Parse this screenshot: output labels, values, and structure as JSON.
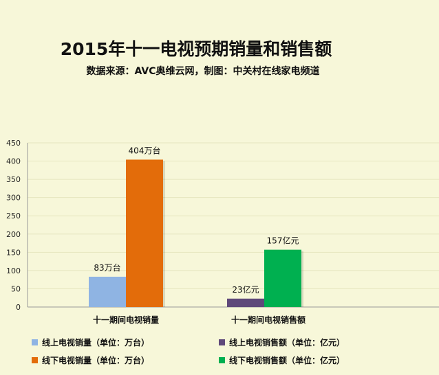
{
  "chart_data": {
    "type": "bar",
    "title": "2015年十一电视预期销量和销售额",
    "subtitle": "数据来源：AVC奥维云网，制图：中关村在线家电频道",
    "categories": [
      "十一期间电视销量",
      "十一期间电视销售额"
    ],
    "ylim": [
      0,
      450
    ],
    "yticks": [
      0,
      50,
      100,
      150,
      200,
      250,
      300,
      350,
      400,
      450
    ],
    "grid": true,
    "legend_position": "bottom",
    "series": [
      {
        "name": "线上电视销量（单位：万台）",
        "color": "#8fb4e3",
        "category_index": 0,
        "value": 83,
        "label": "83万台"
      },
      {
        "name": "线下电视销量（单位：万台）",
        "color": "#e36c0a",
        "category_index": 0,
        "value": 404,
        "label": "404万台"
      },
      {
        "name": "线上电视销售额（单位：亿元）",
        "color": "#5f497a",
        "category_index": 1,
        "value": 23,
        "label": "23亿元"
      },
      {
        "name": "线下电视销售额（单位：亿元）",
        "color": "#00b050",
        "category_index": 1,
        "value": 157,
        "label": "157亿元"
      }
    ]
  }
}
